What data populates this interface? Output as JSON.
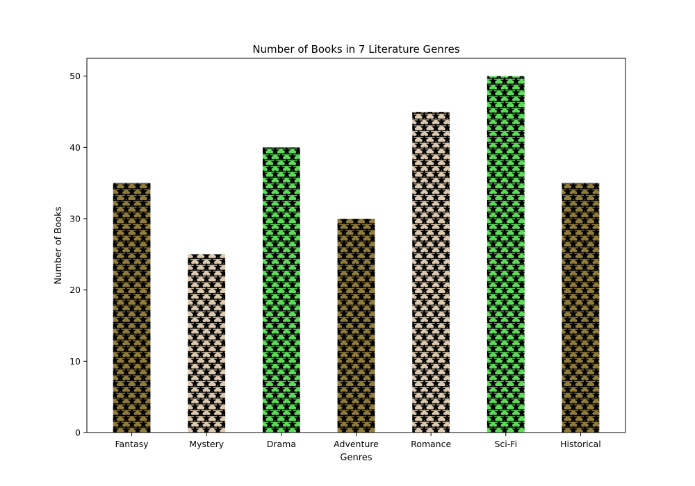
{
  "chart_data": {
    "type": "bar",
    "title": "Number of Books in 7 Literature Genres",
    "xlabel": "Genres",
    "ylabel": "Number of Books",
    "categories": [
      "Fantasy",
      "Mystery",
      "Drama",
      "Adventure",
      "Romance",
      "Sci-Fi",
      "Historical"
    ],
    "values": [
      35,
      25,
      40,
      30,
      45,
      50,
      35
    ],
    "colors": [
      "#8f7b3c",
      "#dccab0",
      "#5ddc5a",
      "#8f7b3c",
      "#dccab0",
      "#5ddc5a",
      "#8f7b3c"
    ],
    "hatch": "stars-and-horizontal-lines",
    "ylim": [
      0,
      52.5
    ],
    "yticks": [
      0,
      10,
      20,
      30,
      40,
      50
    ],
    "grid": false,
    "legend": "none"
  }
}
